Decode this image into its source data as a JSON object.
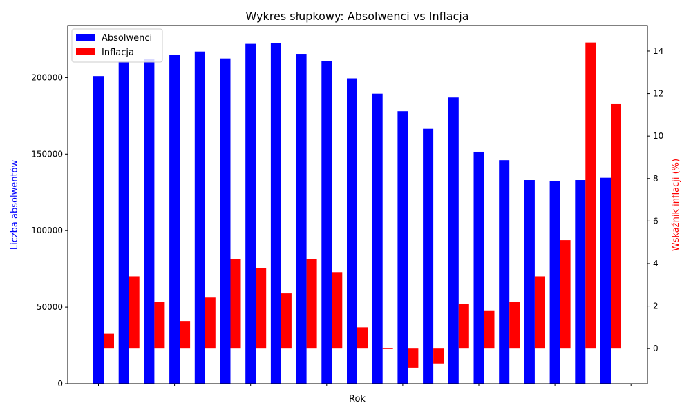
{
  "chart_data": {
    "type": "bar",
    "title": "Wykres słupkowy: Absolwenci vs Inflacja",
    "xlabel": "Rok",
    "ylabel_left": "Liczba absolwentów",
    "ylabel_right": "Wskaźnik inflacji (%)",
    "left_axis": {
      "ylim": [
        0,
        234000
      ],
      "ticks": [
        0,
        50000,
        100000,
        150000,
        200000
      ]
    },
    "right_axis": {
      "ylim": [
        -1.65,
        15.2
      ],
      "ticks": [
        0,
        2,
        4,
        6,
        8,
        10,
        12,
        14
      ]
    },
    "x_tick_count": 8,
    "legend_position": "top-left",
    "grid": false,
    "colors": {
      "absolwenci": "#0000ff",
      "inflacja": "#ff0000",
      "left_label": "#0000ff",
      "right_label": "#ff0000"
    },
    "series": [
      {
        "name": "Absolwenci",
        "axis": "left",
        "values": [
          201000,
          210500,
          212000,
          215000,
          217000,
          212500,
          222000,
          222500,
          215500,
          211000,
          199500,
          189500,
          178000,
          166500,
          187000,
          151500,
          146000,
          133000,
          132500,
          133000,
          134500
        ]
      },
      {
        "name": "Inflacja",
        "axis": "right",
        "values": [
          0.7,
          3.4,
          2.2,
          1.3,
          2.4,
          4.2,
          3.8,
          2.6,
          4.2,
          3.6,
          1.0,
          0.0,
          -0.9,
          -0.7,
          2.1,
          1.8,
          2.2,
          3.4,
          5.1,
          14.4,
          11.5
        ]
      }
    ]
  }
}
